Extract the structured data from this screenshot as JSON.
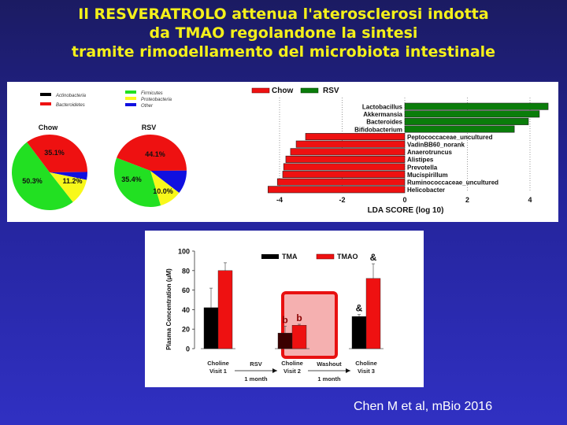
{
  "title": {
    "line1": "Il RESVERATROLO attenua l'aterosclerosi indotta",
    "line2": "da TMAO regolandone la sintesi",
    "line3": "tramite rimodellamento del microbiota intestinale"
  },
  "citation": "Chen M et al, mBio 2016",
  "colors": {
    "title_yellow": "#f4f01a",
    "bg_top": "#1b1b62",
    "bg_bottom": "#3030c2",
    "actinobacteria": "#000000",
    "bacteroidetes": "#ee1111",
    "firmicutes": "#22e022",
    "proteobacteria": "#f8f81a",
    "other": "#1010e0",
    "chow": "#ee1111",
    "rsv": "#0a7d0a",
    "tma": "#000000",
    "tmao": "#ee1111"
  },
  "pie_legend": [
    "Actinobacteria",
    "Bacteroidetes",
    "Firmicutes",
    "Proteobacteria",
    "Other"
  ],
  "lda_legend": {
    "chow": "Chow",
    "rsv": "RSV"
  },
  "bar_legend": {
    "tma": "TMA",
    "tmao": "TMAO"
  },
  "chart_data": [
    {
      "type": "pie",
      "title": "Chow",
      "labels": [
        "Actinobacteria",
        "Bacteroidetes",
        "Firmicutes",
        "Proteobacteria",
        "Other"
      ],
      "values": [
        0.0,
        35.1,
        50.3,
        11.2,
        3.4
      ],
      "value_labels": [
        "",
        "35.1%",
        "50.3%",
        "11.2%",
        ""
      ]
    },
    {
      "type": "pie",
      "title": "RSV",
      "labels": [
        "Actinobacteria",
        "Bacteroidetes",
        "Firmicutes",
        "Proteobacteria",
        "Other"
      ],
      "values": [
        0.0,
        44.1,
        35.4,
        10.0,
        10.5
      ],
      "value_labels": [
        "",
        "44.1%",
        "35.4%",
        "10.0%",
        ""
      ]
    },
    {
      "type": "bar",
      "orientation": "horizontal",
      "title": "",
      "xlabel": "LDA SCORE (log 10)",
      "xlim": [
        -4.5,
        4.6
      ],
      "xticks": [
        -4,
        -2,
        0,
        2,
        4
      ],
      "legend": [
        "Chow",
        "RSV"
      ],
      "categories": [
        "Lactobacillus",
        "Akkermansia",
        "Bacteroides",
        "Bifidobacterium",
        "Peptococcaceae_uncultured",
        "VadinBB60_norank",
        "Anaerotruncus",
        "Alistipes",
        "Prevotella",
        "Mucispirillum",
        "Ruminococcaceae_uncultured",
        "Helicobacter"
      ],
      "values": [
        4.58,
        4.3,
        3.95,
        3.5,
        -3.17,
        -3.47,
        -3.65,
        -3.8,
        -3.87,
        -3.9,
        -4.07,
        -4.37
      ],
      "groups": [
        "RSV",
        "RSV",
        "RSV",
        "RSV",
        "Chow",
        "Chow",
        "Chow",
        "Chow",
        "Chow",
        "Chow",
        "Chow",
        "Chow"
      ]
    },
    {
      "type": "bar",
      "orientation": "vertical",
      "title": "",
      "ylabel": "Plasma Concentration (μM)",
      "ylim": [
        0,
        100
      ],
      "yticks": [
        0,
        20,
        40,
        60,
        80,
        100
      ],
      "categories": [
        "Choline Visit 1",
        "Choline Visit 2",
        "Choline Visit 3"
      ],
      "category_lines": [
        [
          "Choline",
          "Visit 1"
        ],
        [
          "Choline",
          "Visit 2"
        ],
        [
          "Choline",
          "Visit 3"
        ]
      ],
      "series": [
        {
          "name": "TMA",
          "values": [
            42,
            16,
            33
          ],
          "error_upper": [
            62,
            23,
            35
          ],
          "annotations": [
            "",
            "b",
            "&"
          ]
        },
        {
          "name": "TMAO",
          "values": [
            80,
            24,
            72
          ],
          "error_upper": [
            88,
            25,
            87
          ],
          "annotations": [
            "",
            "b",
            "&"
          ]
        }
      ],
      "transitions": [
        {
          "label": "RSV",
          "duration": "1 month"
        },
        {
          "label": "Washout",
          "duration": "1 month"
        }
      ],
      "highlight": "Choline Visit 2"
    }
  ]
}
